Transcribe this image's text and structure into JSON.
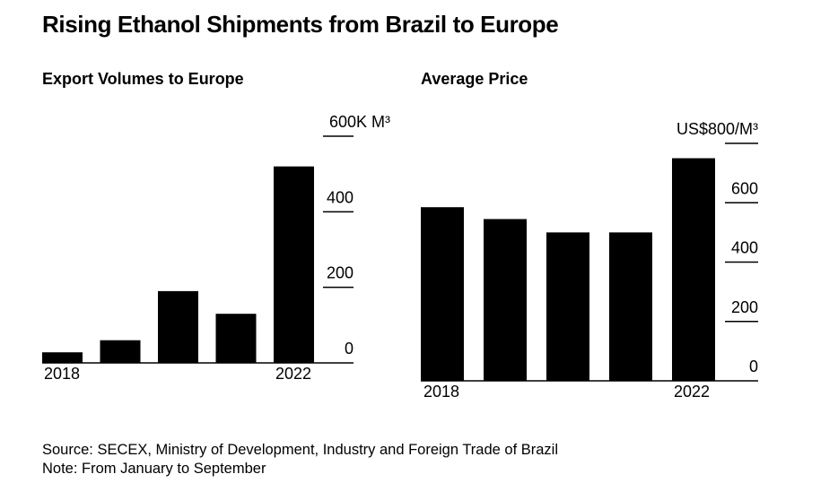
{
  "title": "Rising Ethanol Shipments from Brazil to Europe",
  "source": "Source: SECEX, Ministry of Development, Industry and Foreign Trade of Brazil",
  "note": "Note: From January to September",
  "colors": {
    "bar": "#000000",
    "axis": "#000000",
    "background": "#ffffff"
  },
  "chart_data": [
    {
      "type": "bar",
      "title": "Export Volumes to Europe",
      "categories": [
        "2018",
        "2019",
        "2020",
        "2021",
        "2022"
      ],
      "x_tick_labels": [
        "2018",
        "",
        "",
        "",
        "2022"
      ],
      "values": [
        28,
        60,
        190,
        130,
        520
      ],
      "ylim": [
        0,
        600
      ],
      "yticks": [
        0,
        200,
        400,
        600
      ],
      "ytick_labels": [
        "0",
        "200",
        "400",
        "600K M³"
      ],
      "xlabel": "",
      "ylabel": "",
      "grid": false,
      "legend": "none"
    },
    {
      "type": "bar",
      "title": "Average Price",
      "categories": [
        "2018",
        "2019",
        "2020",
        "2021",
        "2022"
      ],
      "x_tick_labels": [
        "2018",
        "",
        "",
        "",
        "2022"
      ],
      "values": [
        585,
        545,
        500,
        500,
        750
      ],
      "ylim": [
        0,
        800
      ],
      "yticks": [
        0,
        200,
        400,
        600,
        800
      ],
      "ytick_labels": [
        "0",
        "200",
        "400",
        "600",
        "US$800/M³"
      ],
      "xlabel": "",
      "ylabel": "",
      "grid": false,
      "legend": "none"
    }
  ]
}
